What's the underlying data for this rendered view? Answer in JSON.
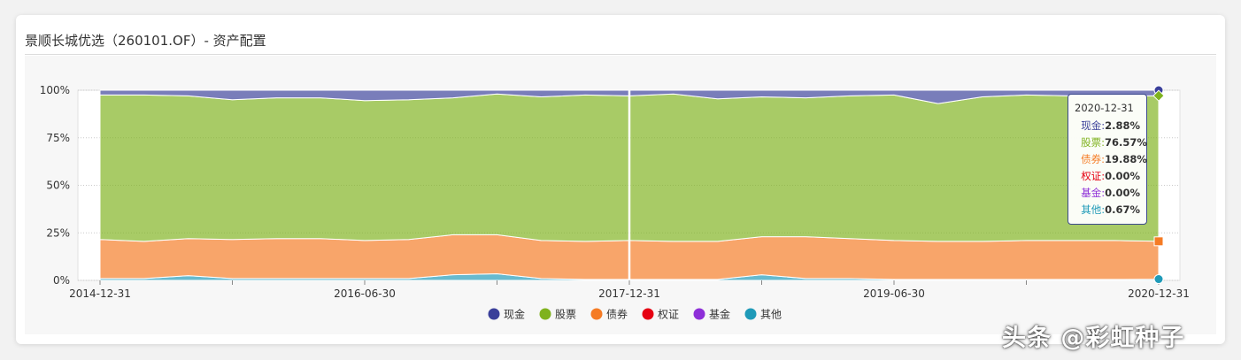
{
  "title": "景顺长城优选（260101.OF）- 资产配置",
  "chart_data": {
    "type": "area",
    "stacked": true,
    "x": [
      "2014-12-31",
      "2015-03-31",
      "2015-06-30",
      "2015-09-30",
      "2015-12-31",
      "2016-03-31",
      "2016-06-30",
      "2016-09-30",
      "2016-12-31",
      "2017-03-31",
      "2017-06-30",
      "2017-09-30",
      "2017-12-31",
      "2018-03-31",
      "2018-06-30",
      "2018-09-30",
      "2018-12-31",
      "2019-03-31",
      "2019-06-30",
      "2019-09-30",
      "2019-12-31",
      "2020-03-31",
      "2020-06-30",
      "2020-09-30",
      "2020-12-31"
    ],
    "x_tick_labels": [
      "2014-12-31",
      "2016-06-30",
      "2017-12-31",
      "2019-06-30",
      "2020-12-31"
    ],
    "y_tick_labels": [
      "100%",
      "75%",
      "50%",
      "25%",
      "0%"
    ],
    "ylim": [
      0,
      100
    ],
    "series": [
      {
        "name": "其他",
        "color": "#1f9ab8",
        "values": [
          1.0,
          1.0,
          2.5,
          1.0,
          1.0,
          1.0,
          1.0,
          1.0,
          3.0,
          3.5,
          1.0,
          0.5,
          0.5,
          0.5,
          0.5,
          3.0,
          1.0,
          1.0,
          0.5,
          0.5,
          0.5,
          0.5,
          0.5,
          0.5,
          0.67
        ]
      },
      {
        "name": "债券",
        "color": "#f57b24",
        "values": [
          20.5,
          19.5,
          19.5,
          20.5,
          21.0,
          21.0,
          20.0,
          20.5,
          21.0,
          20.5,
          20.0,
          20.0,
          20.5,
          20.0,
          20.0,
          20.0,
          22.0,
          21.0,
          20.5,
          20.0,
          20.0,
          20.5,
          20.5,
          20.5,
          19.88
        ]
      },
      {
        "name": "基金",
        "color": "#8e2fd8",
        "values": [
          0,
          0,
          0,
          0,
          0,
          0,
          0,
          0,
          0,
          0,
          0,
          0,
          0,
          0,
          0,
          0,
          0,
          0,
          0,
          0,
          0,
          0,
          0,
          0,
          0
        ]
      },
      {
        "name": "权证",
        "color": "#e60012",
        "values": [
          0,
          0,
          0,
          0,
          0,
          0,
          0,
          0,
          0,
          0,
          0,
          0,
          0,
          0,
          0,
          0,
          0,
          0,
          0,
          0,
          0,
          0,
          0,
          0,
          0
        ]
      },
      {
        "name": "股票",
        "color": "#7fb21e",
        "values": [
          76.0,
          77.0,
          75.0,
          73.5,
          74.0,
          74.0,
          73.5,
          73.5,
          72.0,
          74.0,
          75.5,
          77.0,
          76.0,
          77.5,
          75.0,
          73.5,
          73.0,
          75.0,
          76.5,
          72.5,
          76.0,
          76.5,
          76.0,
          76.0,
          76.57
        ]
      },
      {
        "name": "现金",
        "color": "#3a3f9a",
        "values": [
          2.5,
          2.5,
          3.0,
          5.0,
          4.0,
          4.0,
          5.5,
          5.0,
          4.0,
          2.0,
          3.5,
          2.5,
          3.0,
          2.0,
          4.5,
          3.5,
          4.0,
          3.0,
          2.5,
          7.0,
          3.5,
          2.5,
          3.0,
          3.0,
          2.88
        ]
      }
    ],
    "legend": [
      {
        "name": "现金",
        "color": "#3a3f9a"
      },
      {
        "name": "股票",
        "color": "#7fb21e"
      },
      {
        "name": "债券",
        "color": "#f57b24"
      },
      {
        "name": "权证",
        "color": "#e60012"
      },
      {
        "name": "基金",
        "color": "#8e2fd8"
      },
      {
        "name": "其他",
        "color": "#1f9ab8"
      }
    ],
    "crosshair_x": "2017-12-31",
    "tooltip": {
      "date": "2020-12-31",
      "rows": [
        {
          "label": "现金:",
          "value": "2.88%",
          "color": "#3a3f9a"
        },
        {
          "label": "股票:",
          "value": "76.57%",
          "color": "#7fb21e"
        },
        {
          "label": "债券:",
          "value": "19.88%",
          "color": "#f57b24"
        },
        {
          "label": "权证:",
          "value": "0.00%",
          "color": "#e60012"
        },
        {
          "label": "基金:",
          "value": "0.00%",
          "color": "#8e2fd8"
        },
        {
          "label": "其他:",
          "value": "0.67%",
          "color": "#1f9ab8"
        }
      ]
    }
  },
  "watermark": "头条 @彩虹种子"
}
